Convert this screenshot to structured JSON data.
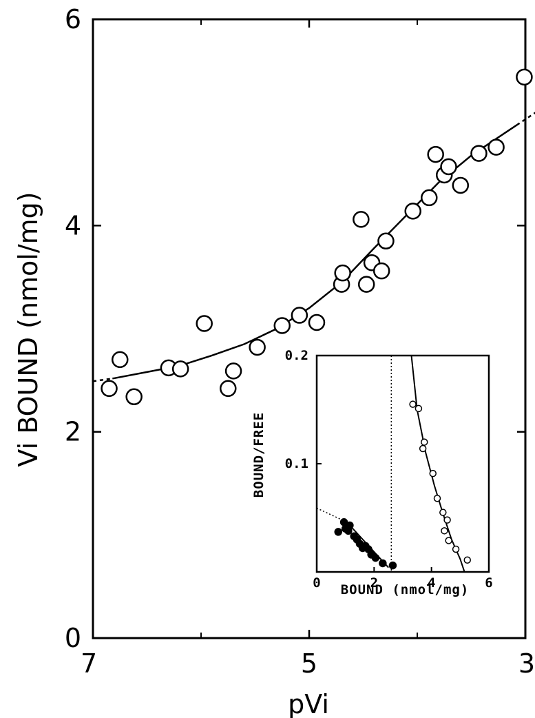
{
  "chart_data": [
    {
      "type": "scatter",
      "xlabel": "pVi",
      "ylabel": "Vi BOUND (nmol/mg)",
      "xlim": [
        7,
        3
      ],
      "ylim": [
        0,
        6
      ],
      "x_ticks": [
        "7",
        "5",
        "3"
      ],
      "y_ticks": [
        "0",
        "2",
        "4",
        "6"
      ],
      "grid": false,
      "markers": "open circles",
      "series": [
        {
          "values": [
            {
              "x": 6.85,
              "y": 2.42
            },
            {
              "x": 6.75,
              "y": 2.7
            },
            {
              "x": 6.62,
              "y": 2.34
            },
            {
              "x": 6.3,
              "y": 2.62
            },
            {
              "x": 6.19,
              "y": 2.61
            },
            {
              "x": 5.97,
              "y": 3.05
            },
            {
              "x": 5.75,
              "y": 2.42
            },
            {
              "x": 5.7,
              "y": 2.59
            },
            {
              "x": 5.48,
              "y": 2.82
            },
            {
              "x": 5.25,
              "y": 3.03
            },
            {
              "x": 5.09,
              "y": 3.13
            },
            {
              "x": 4.93,
              "y": 3.06
            },
            {
              "x": 4.7,
              "y": 3.43
            },
            {
              "x": 4.69,
              "y": 3.54
            },
            {
              "x": 4.52,
              "y": 4.06
            },
            {
              "x": 4.47,
              "y": 3.43
            },
            {
              "x": 4.42,
              "y": 3.64
            },
            {
              "x": 4.33,
              "y": 3.56
            },
            {
              "x": 4.29,
              "y": 3.85
            },
            {
              "x": 4.04,
              "y": 4.14
            },
            {
              "x": 3.89,
              "y": 4.27
            },
            {
              "x": 3.83,
              "y": 4.69
            },
            {
              "x": 3.75,
              "y": 4.49
            },
            {
              "x": 3.71,
              "y": 4.57
            },
            {
              "x": 3.6,
              "y": 4.39
            },
            {
              "x": 3.43,
              "y": 4.7
            },
            {
              "x": 3.27,
              "y": 4.76
            },
            {
              "x": 3.01,
              "y": 5.44
            }
          ]
        }
      ],
      "fit_curve": [
        {
          "x": 7.0,
          "y": 2.49
        },
        {
          "x": 6.8,
          "y": 2.52
        },
        {
          "x": 6.5,
          "y": 2.58
        },
        {
          "x": 6.2,
          "y": 2.64
        },
        {
          "x": 5.9,
          "y": 2.74
        },
        {
          "x": 5.6,
          "y": 2.85
        },
        {
          "x": 5.3,
          "y": 3.0
        },
        {
          "x": 5.0,
          "y": 3.2
        },
        {
          "x": 4.7,
          "y": 3.45
        },
        {
          "x": 4.4,
          "y": 3.78
        },
        {
          "x": 4.1,
          "y": 4.1
        },
        {
          "x": 3.8,
          "y": 4.42
        },
        {
          "x": 3.5,
          "y": 4.68
        },
        {
          "x": 3.2,
          "y": 4.89
        },
        {
          "x": 3.0,
          "y": 5.03
        },
        {
          "x": 2.9,
          "y": 5.1
        },
        {
          "x": 2.85,
          "y": 5.14
        }
      ]
    },
    {
      "type": "scatter",
      "xlabel": "BOUND (nmol/mg)",
      "ylabel": "BOUND/FREE",
      "xlim": [
        0,
        6
      ],
      "ylim": [
        0,
        0.2
      ],
      "x_ticks": [
        "0",
        "2",
        "4",
        "6"
      ],
      "y_ticks": [
        "0.1",
        "0.2"
      ],
      "vline_x": 2.6,
      "series": [
        {
          "marker": "filled",
          "values": [
            {
              "x": 0.75,
              "y": 0.037
            },
            {
              "x": 0.95,
              "y": 0.046
            },
            {
              "x": 1.0,
              "y": 0.04
            },
            {
              "x": 1.1,
              "y": 0.038
            },
            {
              "x": 1.15,
              "y": 0.043
            },
            {
              "x": 1.3,
              "y": 0.033
            },
            {
              "x": 1.4,
              "y": 0.03
            },
            {
              "x": 1.5,
              "y": 0.026
            },
            {
              "x": 1.6,
              "y": 0.022
            },
            {
              "x": 1.7,
              "y": 0.024
            },
            {
              "x": 1.8,
              "y": 0.021
            },
            {
              "x": 1.9,
              "y": 0.016
            },
            {
              "x": 2.05,
              "y": 0.013
            },
            {
              "x": 2.3,
              "y": 0.008
            },
            {
              "x": 2.65,
              "y": 0.006
            }
          ]
        },
        {
          "marker": "open",
          "values": [
            {
              "x": 3.35,
              "y": 0.155
            },
            {
              "x": 3.55,
              "y": 0.151
            },
            {
              "x": 3.75,
              "y": 0.12
            },
            {
              "x": 3.7,
              "y": 0.114
            },
            {
              "x": 4.05,
              "y": 0.091
            },
            {
              "x": 4.2,
              "y": 0.068
            },
            {
              "x": 4.4,
              "y": 0.055
            },
            {
              "x": 4.55,
              "y": 0.048
            },
            {
              "x": 4.45,
              "y": 0.038
            },
            {
              "x": 4.6,
              "y": 0.029
            },
            {
              "x": 4.85,
              "y": 0.021
            },
            {
              "x": 5.25,
              "y": 0.011
            }
          ]
        }
      ],
      "fit_lines": [
        {
          "points": [
            {
              "x": 1.05,
              "y": 0.046
            },
            {
              "x": 2.5,
              "y": 0.004
            }
          ]
        },
        {
          "points": [
            {
              "x": 0.0,
              "y": 0.059
            },
            {
              "x": 1.05,
              "y": 0.046
            }
          ],
          "style": "dotted"
        },
        {
          "points": [
            {
              "x": 3.3,
              "y": 0.2
            },
            {
              "x": 3.5,
              "y": 0.15
            },
            {
              "x": 3.8,
              "y": 0.11
            },
            {
              "x": 4.1,
              "y": 0.08
            },
            {
              "x": 4.4,
              "y": 0.054
            },
            {
              "x": 4.7,
              "y": 0.03
            },
            {
              "x": 5.0,
              "y": 0.012
            },
            {
              "x": 5.15,
              "y": 0.0
            }
          ]
        }
      ]
    }
  ]
}
